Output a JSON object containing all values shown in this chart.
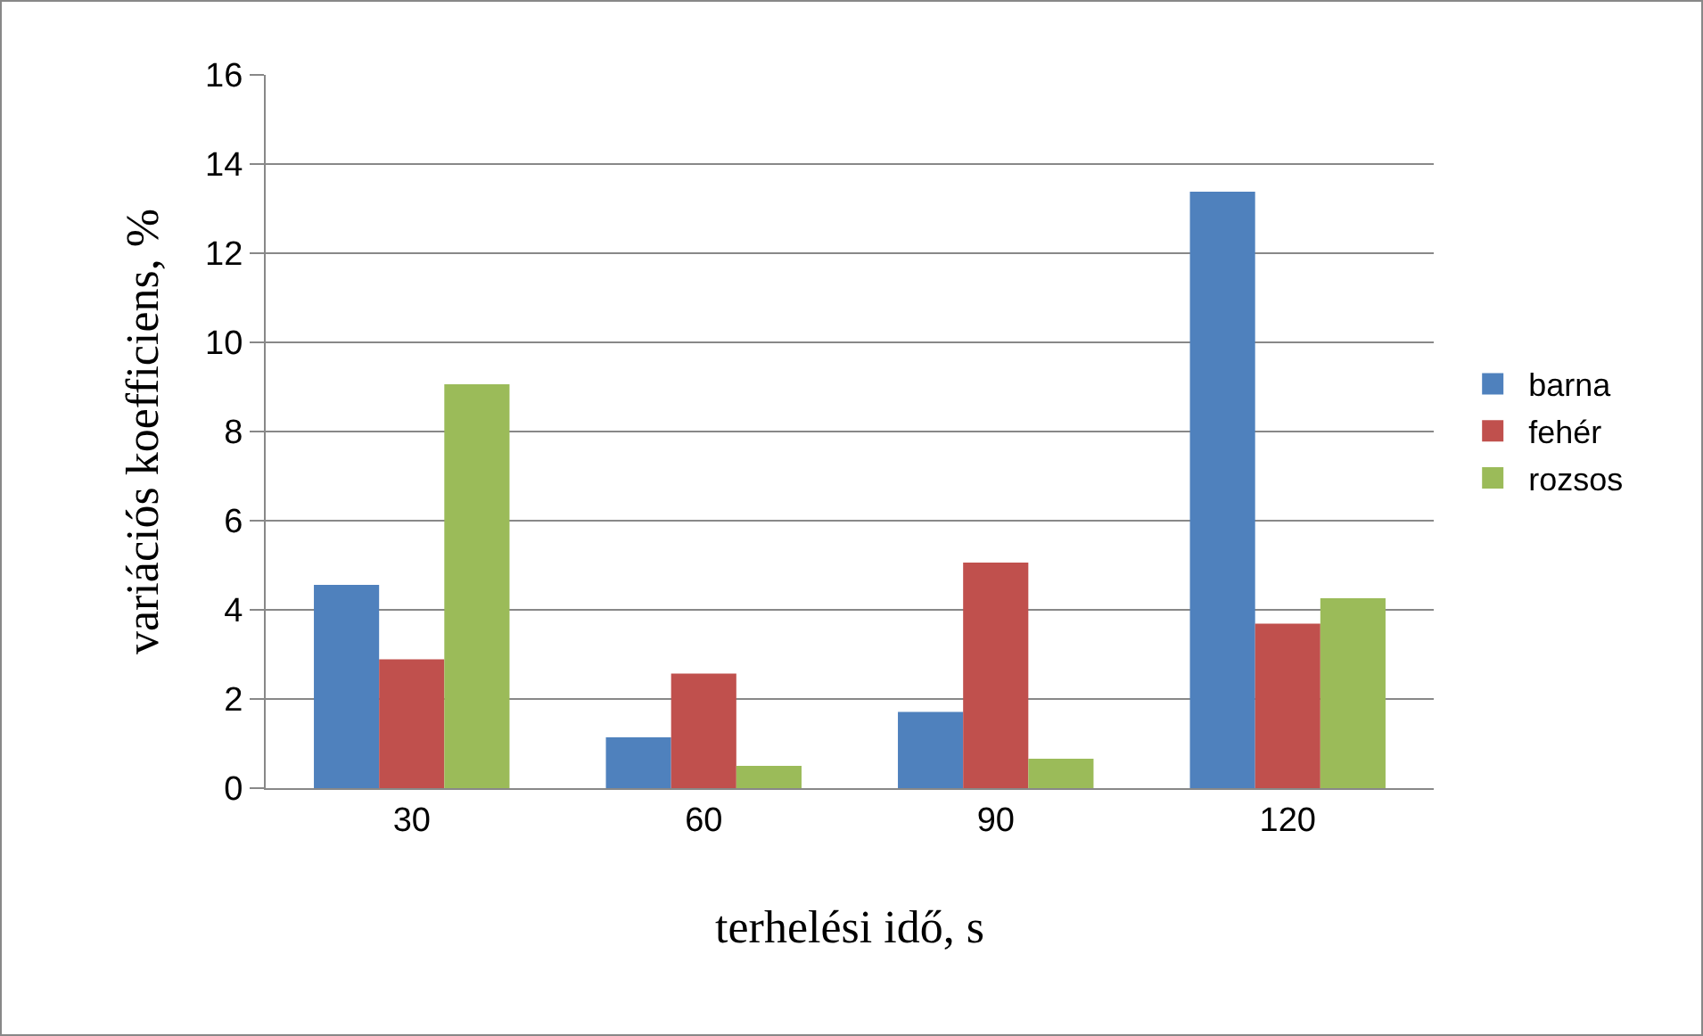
{
  "chart_data": {
    "type": "bar",
    "xlabel": "terhelési idő, s",
    "ylabel": "variációs koefficiens, %",
    "categories": [
      "30",
      "60",
      "90",
      "120"
    ],
    "series": [
      {
        "name": "barna",
        "color": "#4f81bd",
        "values": [
          4.56,
          1.14,
          1.71,
          13.38
        ]
      },
      {
        "name": "fehér",
        "color": "#c0504d",
        "values": [
          2.89,
          2.57,
          5.06,
          3.69
        ]
      },
      {
        "name": "rozsos",
        "color": "#9bbb59",
        "values": [
          9.06,
          0.5,
          0.66,
          4.26
        ]
      }
    ],
    "ylim": [
      0,
      16
    ],
    "yticks": [
      0,
      2,
      4,
      6,
      8,
      10,
      12,
      14,
      16
    ],
    "grid": "y",
    "legend": "right"
  }
}
